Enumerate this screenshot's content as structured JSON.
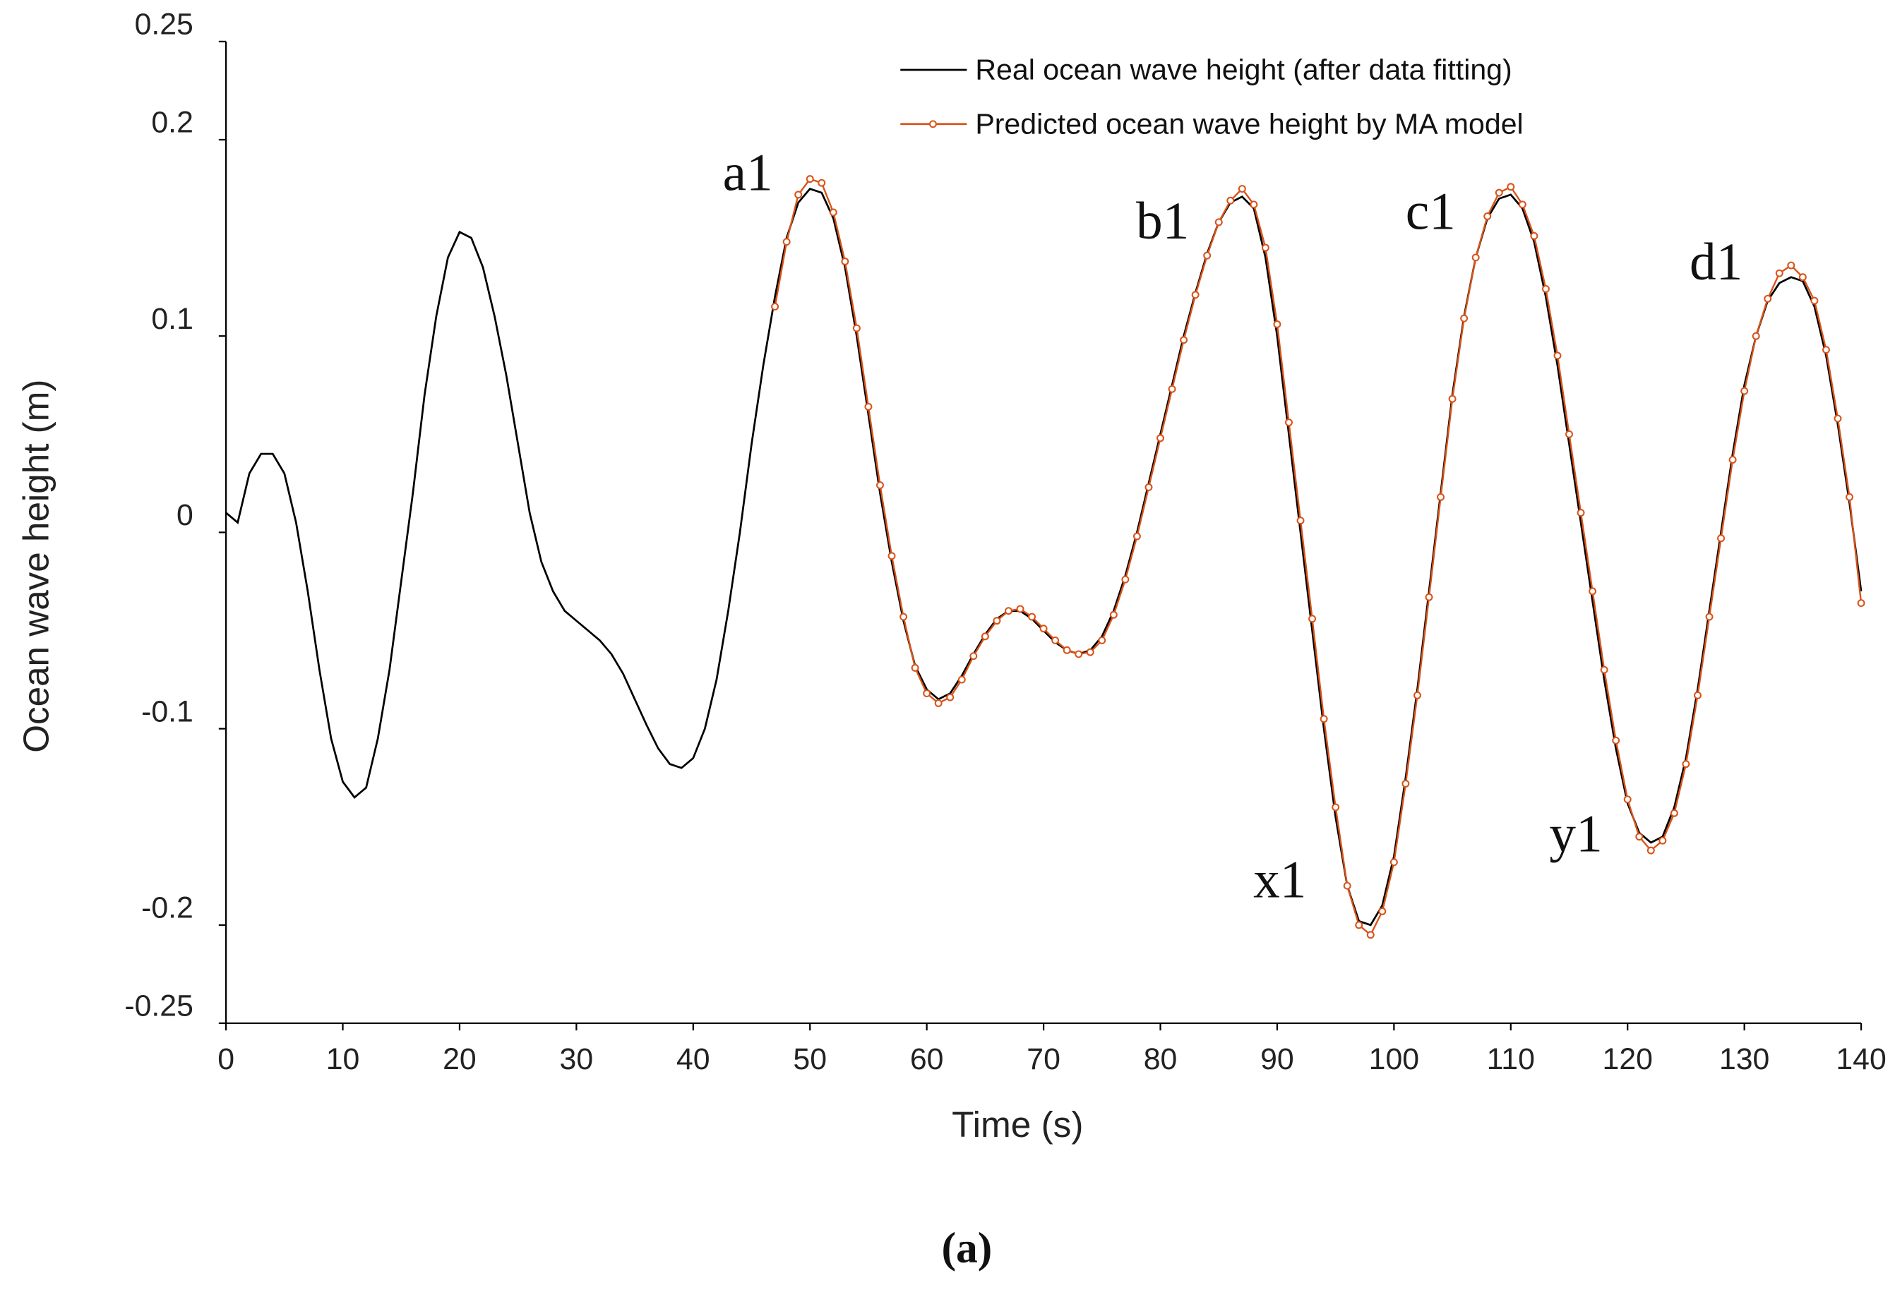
{
  "chart_data": {
    "type": "line",
    "x_label": "Time (s)",
    "y_label": "Ocean wave height (m)",
    "caption": "(a)",
    "annotations": [
      "a1",
      "b1",
      "c1",
      "x1",
      "y1",
      "d1"
    ],
    "xlim": [
      0,
      140
    ],
    "xticks": [
      0,
      10,
      20,
      30,
      40,
      50,
      60,
      70,
      80,
      90,
      100,
      110,
      120,
      130,
      140
    ],
    "ylim": [
      -0.25,
      0.25
    ],
    "yticks": [
      0.25,
      0.2,
      0.1,
      0,
      -0.1,
      -0.2,
      -0.25
    ],
    "legend": "upper right",
    "series": [
      {
        "name": "Real ocean wave height (after data fitting)",
        "color": "#000000",
        "marker": false,
        "x": [
          0,
          1,
          2,
          3,
          4,
          5,
          6,
          7,
          8,
          9,
          10,
          11,
          12,
          13,
          14,
          15,
          16,
          17,
          18,
          19,
          20,
          21,
          22,
          23,
          24,
          25,
          26,
          27,
          28,
          29,
          30,
          31,
          32,
          33,
          34,
          35,
          36,
          37,
          38,
          39,
          40,
          41,
          42,
          43,
          44,
          45,
          46,
          47,
          48,
          49,
          50,
          51,
          52,
          53,
          54,
          55,
          56,
          57,
          58,
          59,
          60,
          61,
          62,
          63,
          64,
          65,
          66,
          67,
          68,
          69,
          70,
          71,
          72,
          73,
          74,
          75,
          76,
          77,
          78,
          79,
          80,
          81,
          82,
          83,
          84,
          85,
          86,
          87,
          88,
          89,
          90,
          91,
          92,
          93,
          94,
          95,
          96,
          97,
          98,
          99,
          100,
          101,
          102,
          103,
          104,
          105,
          106,
          107,
          108,
          109,
          110,
          111,
          112,
          113,
          114,
          115,
          116,
          117,
          118,
          119,
          120,
          121,
          122,
          123,
          124,
          125,
          126,
          127,
          128,
          129,
          130,
          131,
          132,
          133,
          134,
          135,
          136,
          137,
          138,
          139,
          140
        ],
        "values": [
          0.01,
          0.005,
          0.03,
          0.04,
          0.04,
          0.03,
          0.005,
          -0.03,
          -0.07,
          -0.105,
          -0.127,
          -0.135,
          -0.13,
          -0.105,
          -0.07,
          -0.025,
          0.02,
          0.07,
          0.11,
          0.14,
          0.153,
          0.15,
          0.135,
          0.11,
          0.08,
          0.045,
          0.01,
          -0.015,
          -0.03,
          -0.04,
          -0.045,
          -0.05,
          -0.055,
          -0.062,
          -0.072,
          -0.085,
          -0.098,
          -0.11,
          -0.118,
          -0.12,
          -0.115,
          -0.1,
          -0.075,
          -0.04,
          0.0,
          0.045,
          0.085,
          0.12,
          0.15,
          0.168,
          0.175,
          0.173,
          0.16,
          0.135,
          0.1,
          0.06,
          0.02,
          -0.015,
          -0.045,
          -0.068,
          -0.08,
          -0.085,
          -0.082,
          -0.073,
          -0.062,
          -0.052,
          -0.044,
          -0.04,
          -0.04,
          -0.044,
          -0.05,
          -0.056,
          -0.06,
          -0.062,
          -0.06,
          -0.053,
          -0.04,
          -0.022,
          0.0,
          0.025,
          0.05,
          0.075,
          0.1,
          0.122,
          0.142,
          0.158,
          0.168,
          0.171,
          0.165,
          0.14,
          0.1,
          0.05,
          0.0,
          -0.05,
          -0.1,
          -0.145,
          -0.18,
          -0.198,
          -0.2,
          -0.19,
          -0.165,
          -0.125,
          -0.08,
          -0.03,
          0.02,
          0.07,
          0.11,
          0.14,
          0.16,
          0.17,
          0.172,
          0.165,
          0.148,
          0.12,
          0.085,
          0.045,
          0.005,
          -0.035,
          -0.075,
          -0.11,
          -0.138,
          -0.153,
          -0.158,
          -0.155,
          -0.14,
          -0.115,
          -0.08,
          -0.04,
          0.0,
          0.04,
          0.075,
          0.1,
          0.118,
          0.127,
          0.13,
          0.128,
          0.115,
          0.09,
          0.055,
          0.015,
          -0.03
        ]
      },
      {
        "name": "Predicted ocean wave height by MA model",
        "color": "#d95319",
        "marker": true,
        "x": [
          47,
          48,
          49,
          50,
          51,
          52,
          53,
          54,
          55,
          56,
          57,
          58,
          59,
          60,
          61,
          62,
          63,
          64,
          65,
          66,
          67,
          68,
          69,
          70,
          71,
          72,
          73,
          74,
          75,
          76,
          77,
          78,
          79,
          80,
          81,
          82,
          83,
          84,
          85,
          86,
          87,
          88,
          89,
          90,
          91,
          92,
          93,
          94,
          95,
          96,
          97,
          98,
          99,
          100,
          101,
          102,
          103,
          104,
          105,
          106,
          107,
          108,
          109,
          110,
          111,
          112,
          113,
          114,
          115,
          116,
          117,
          118,
          119,
          120,
          121,
          122,
          123,
          124,
          125,
          126,
          127,
          128,
          129,
          130,
          131,
          132,
          133,
          134,
          135,
          136,
          137,
          138,
          139,
          140
        ],
        "values": [
          0.115,
          0.148,
          0.172,
          0.18,
          0.178,
          0.163,
          0.138,
          0.104,
          0.064,
          0.024,
          -0.012,
          -0.043,
          -0.069,
          -0.082,
          -0.087,
          -0.084,
          -0.075,
          -0.063,
          -0.053,
          -0.045,
          -0.04,
          -0.039,
          -0.043,
          -0.049,
          -0.055,
          -0.06,
          -0.062,
          -0.061,
          -0.055,
          -0.042,
          -0.024,
          -0.002,
          0.023,
          0.048,
          0.073,
          0.098,
          0.121,
          0.141,
          0.158,
          0.169,
          0.175,
          0.167,
          0.145,
          0.106,
          0.056,
          0.006,
          -0.044,
          -0.095,
          -0.14,
          -0.18,
          -0.2,
          -0.205,
          -0.193,
          -0.168,
          -0.128,
          -0.083,
          -0.033,
          0.018,
          0.068,
          0.109,
          0.14,
          0.161,
          0.173,
          0.176,
          0.167,
          0.151,
          0.124,
          0.09,
          0.05,
          0.01,
          -0.03,
          -0.07,
          -0.106,
          -0.136,
          -0.155,
          -0.162,
          -0.157,
          -0.143,
          -0.118,
          -0.083,
          -0.043,
          -0.003,
          0.037,
          0.072,
          0.1,
          0.119,
          0.132,
          0.136,
          0.13,
          0.118,
          0.093,
          0.058,
          0.018,
          -0.036
        ]
      }
    ]
  }
}
